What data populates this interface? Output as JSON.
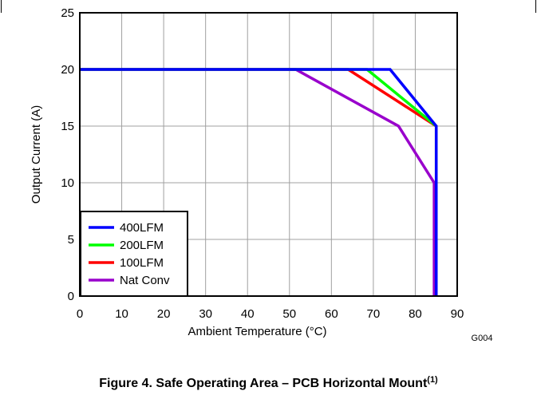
{
  "chart_data": {
    "type": "line",
    "xlabel": "Ambient Temperature (°C)",
    "ylabel": "Output Current (A)",
    "xlim": [
      0,
      90
    ],
    "ylim": [
      0,
      25
    ],
    "xticks": [
      0,
      10,
      20,
      30,
      40,
      50,
      60,
      70,
      80,
      90
    ],
    "yticks": [
      0,
      5,
      10,
      15,
      20,
      25
    ],
    "grid": true,
    "legend_position": "bottom-left",
    "figure_id": "G004",
    "series": [
      {
        "name": "400LFM",
        "color": "#0000ff",
        "points": [
          [
            0,
            20
          ],
          [
            74,
            20
          ],
          [
            85,
            15
          ],
          [
            85,
            0
          ]
        ]
      },
      {
        "name": "200LFM",
        "color": "#00ff00",
        "points": [
          [
            0,
            20
          ],
          [
            68.5,
            20
          ],
          [
            85,
            15
          ],
          [
            85,
            0
          ]
        ]
      },
      {
        "name": "100LFM",
        "color": "#ff0000",
        "points": [
          [
            0,
            20
          ],
          [
            64,
            20
          ],
          [
            85,
            15
          ],
          [
            85,
            0
          ]
        ]
      },
      {
        "name": "Nat Conv",
        "color": "#9900cc",
        "points": [
          [
            0,
            20
          ],
          [
            51.5,
            20
          ],
          [
            76,
            15
          ],
          [
            84.5,
            10
          ],
          [
            84.5,
            0
          ]
        ]
      }
    ]
  },
  "caption": {
    "text": "Figure 4. Safe Operating Area – PCB Horizontal Mount",
    "superscript": "(1)"
  }
}
